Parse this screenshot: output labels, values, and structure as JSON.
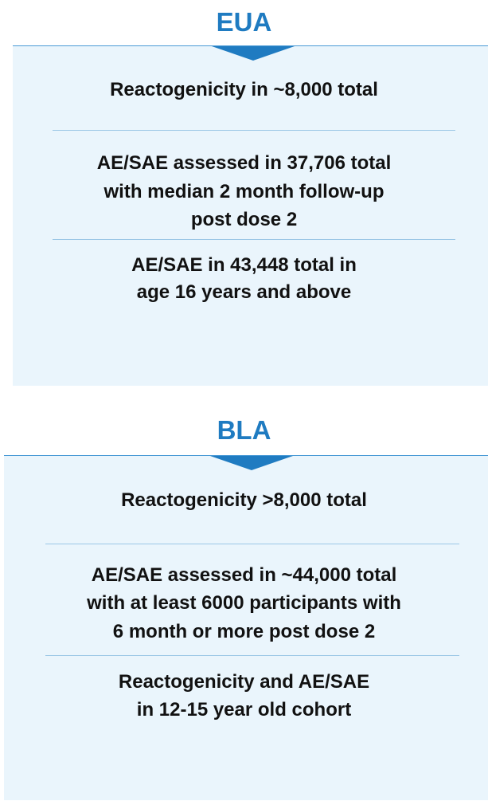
{
  "sections": [
    {
      "title": "EUA",
      "items": [
        {
          "lines": [
            "Reactogenicity in ~8,000 total"
          ]
        },
        {
          "lines": [
            "AE/SAE assessed in 37,706 total",
            "with median 2 month follow-up",
            "post dose 2"
          ]
        },
        {
          "lines": [
            "AE/SAE in 43,448 total in",
            "age 16 years and above"
          ]
        }
      ]
    },
    {
      "title": "BLA",
      "items": [
        {
          "lines": [
            "Reactogenicity >8,000 total"
          ]
        },
        {
          "lines": [
            "AE/SAE assessed in ~44,000 total",
            "with at least 6000 participants with",
            "6 month or more post dose 2"
          ]
        },
        {
          "lines": [
            "Reactogenicity and AE/SAE",
            "in 12-15 year old cohort"
          ]
        }
      ]
    }
  ]
}
